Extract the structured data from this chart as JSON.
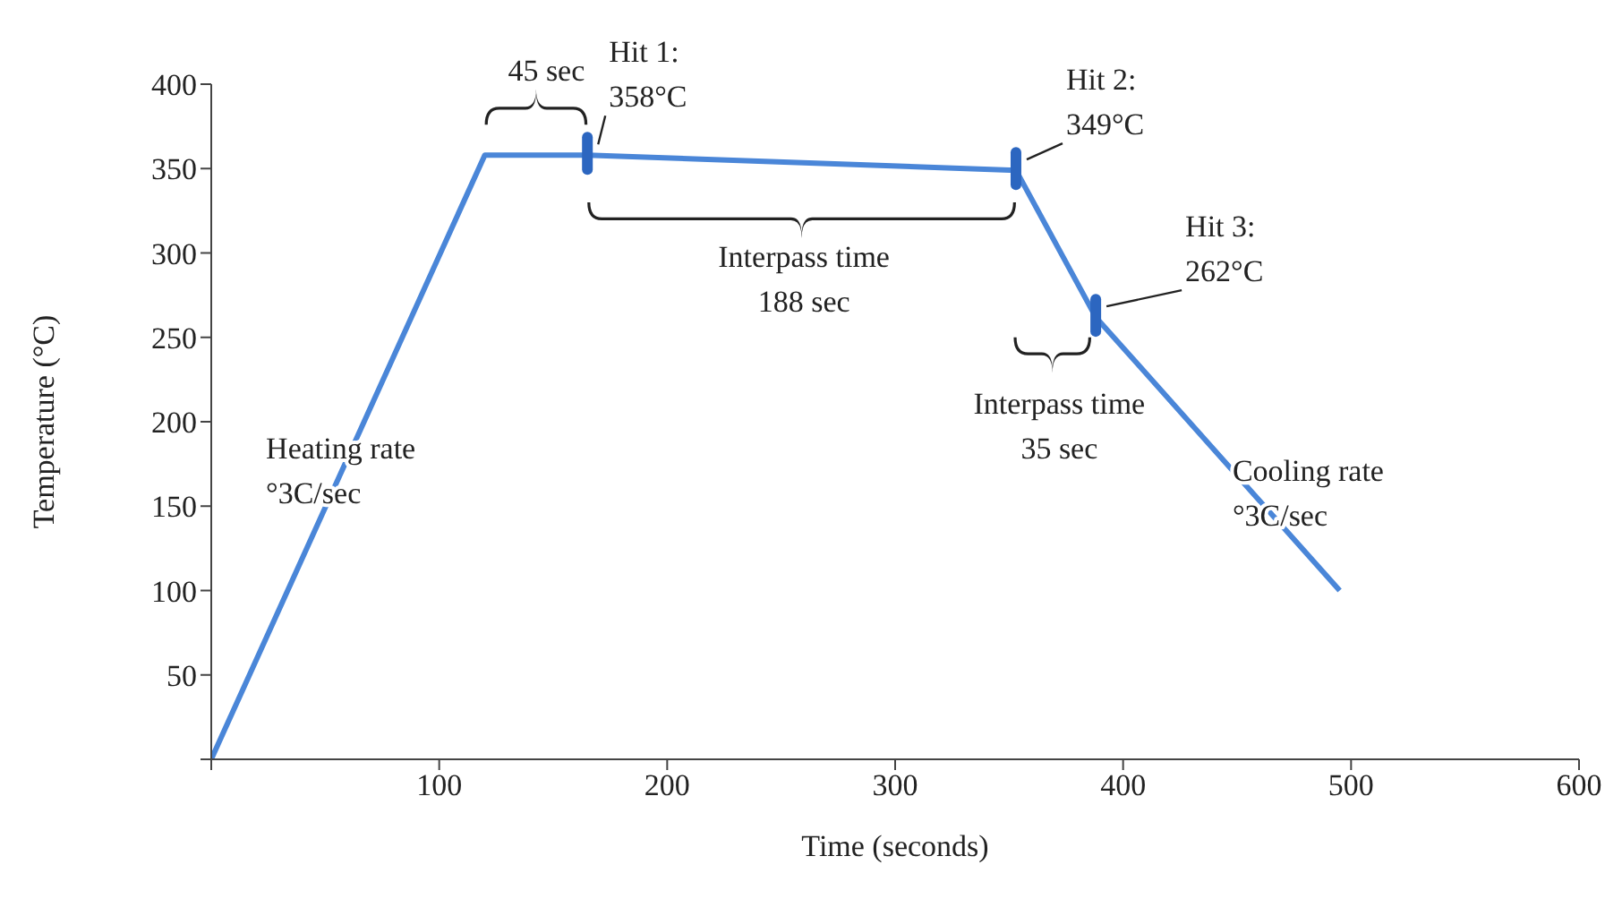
{
  "chart_data": {
    "type": "line",
    "xlabel": "Time (seconds)",
    "ylabel": "Temperature (°C)",
    "x": [
      0,
      120,
      165,
      353,
      388,
      495
    ],
    "series": [
      {
        "color": "#4a86d8",
        "values": [
          0,
          358,
          358,
          349,
          262,
          100
        ]
      }
    ],
    "xlim": [
      0,
      600
    ],
    "xticks": [
      {
        "value": 0,
        "label": null
      },
      100,
      200,
      300,
      400,
      500,
      600
    ],
    "ylim": [
      0,
      400
    ],
    "yticks": [
      {
        "value": 0,
        "label": null
      },
      50,
      100,
      150,
      200,
      250,
      300,
      350,
      400
    ],
    "marker": "none",
    "line_style": "solid",
    "annotations": [
      "45 sec",
      {
        "text": "Hit 1:\n358°C",
        "x": 165,
        "y": 358
      },
      {
        "text": "Hit 2:\n349°C",
        "x": 353,
        "y": 349
      },
      {
        "text": "Hit 3:\n262°C",
        "x": 388,
        "y": 262
      },
      "Interpass time\n188 sec",
      "Interpass time\n35 sec",
      "Heating rate\n°3C/sec",
      "Cooling rate\n°3C/sec"
    ]
  }
}
